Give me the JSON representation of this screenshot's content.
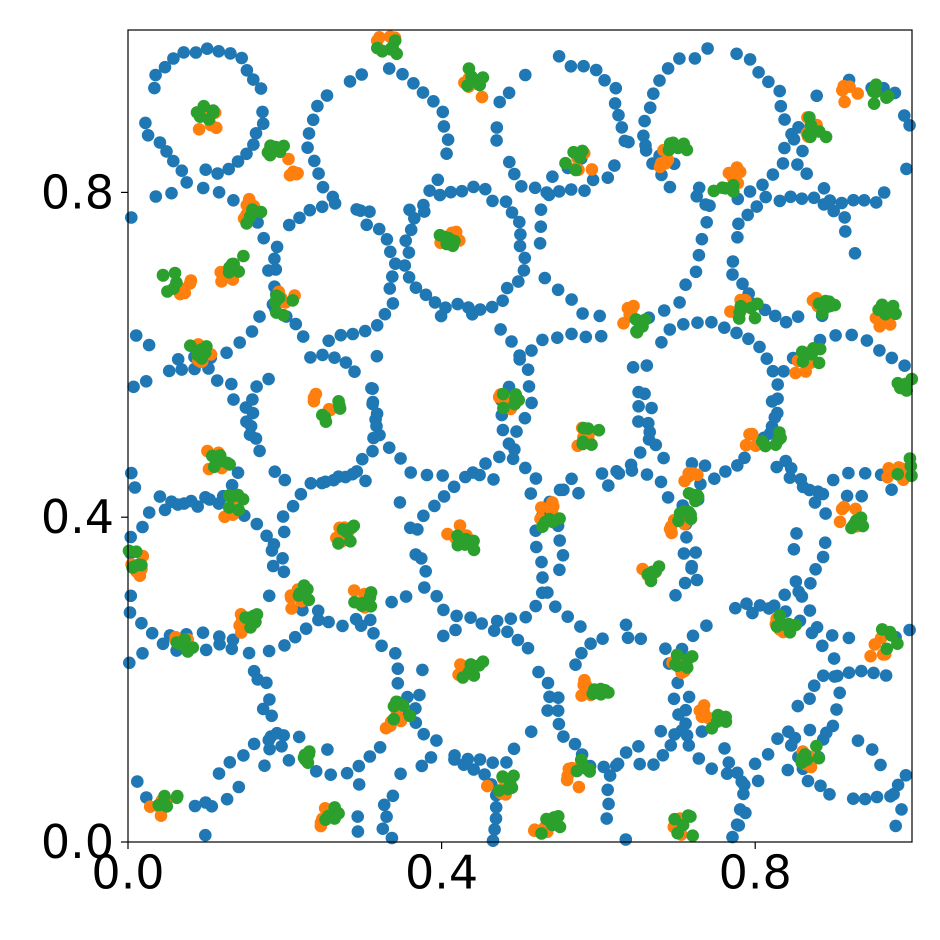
{
  "chart_data": {
    "type": "scatter",
    "title": "",
    "xlabel": "",
    "ylabel": "",
    "xlim": [
      0,
      1
    ],
    "ylim": [
      0,
      1
    ],
    "x_ticks": [
      0.0,
      0.4,
      0.8
    ],
    "x_tick_labels": [
      "0.0",
      "0.4",
      "0.8"
    ],
    "y_ticks": [
      0.0,
      0.4,
      0.8
    ],
    "y_tick_labels": [
      "0.0",
      "0.4",
      "0.8"
    ],
    "grid": false,
    "legend": "none",
    "series": [
      {
        "color": "#1f77b4",
        "ring_centers": [
          [
            0.1,
            0.9
          ],
          [
            0.32,
            0.86
          ],
          [
            0.55,
            0.88
          ],
          [
            0.75,
            0.88
          ],
          [
            0.93,
            0.86
          ],
          [
            0.08,
            0.7
          ],
          [
            0.26,
            0.7
          ],
          [
            0.43,
            0.73
          ],
          [
            0.63,
            0.75
          ],
          [
            0.85,
            0.72
          ],
          [
            0.07,
            0.5
          ],
          [
            0.24,
            0.52
          ],
          [
            0.41,
            0.55
          ],
          [
            0.57,
            0.53
          ],
          [
            0.74,
            0.55
          ],
          [
            0.92,
            0.52
          ],
          [
            0.09,
            0.33
          ],
          [
            0.28,
            0.36
          ],
          [
            0.46,
            0.36
          ],
          [
            0.62,
            0.36
          ],
          [
            0.8,
            0.38
          ],
          [
            0.95,
            0.35
          ],
          [
            0.08,
            0.15
          ],
          [
            0.26,
            0.18
          ],
          [
            0.45,
            0.18
          ],
          [
            0.63,
            0.17
          ],
          [
            0.8,
            0.18
          ],
          [
            0.93,
            0.13
          ],
          [
            0.2,
            0.03
          ],
          [
            0.4,
            0.03
          ],
          [
            0.7,
            0.05
          ],
          [
            0.88,
            0.03
          ]
        ],
        "ring_radius": 0.09,
        "points_per_ring": 32,
        "jitter": 0.012
      },
      {
        "color": "#ff7f0e",
        "clusters": [
          [
            0.1,
            0.89
          ],
          [
            0.21,
            0.83
          ],
          [
            0.33,
            0.98
          ],
          [
            0.44,
            0.93
          ],
          [
            0.15,
            0.78
          ],
          [
            0.13,
            0.7
          ],
          [
            0.2,
            0.67
          ],
          [
            0.07,
            0.68
          ],
          [
            0.1,
            0.6
          ],
          [
            0.41,
            0.74
          ],
          [
            0.58,
            0.84
          ],
          [
            0.69,
            0.84
          ],
          [
            0.77,
            0.82
          ],
          [
            0.87,
            0.88
          ],
          [
            0.92,
            0.92
          ],
          [
            0.64,
            0.65
          ],
          [
            0.78,
            0.66
          ],
          [
            0.88,
            0.66
          ],
          [
            0.96,
            0.64
          ],
          [
            0.86,
            0.59
          ],
          [
            0.25,
            0.54
          ],
          [
            0.48,
            0.54
          ],
          [
            0.58,
            0.5
          ],
          [
            0.72,
            0.45
          ],
          [
            0.8,
            0.49
          ],
          [
            0.11,
            0.47
          ],
          [
            0.13,
            0.41
          ],
          [
            0.27,
            0.38
          ],
          [
            0.42,
            0.38
          ],
          [
            0.53,
            0.41
          ],
          [
            0.66,
            0.33
          ],
          [
            0.7,
            0.39
          ],
          [
            0.92,
            0.4
          ],
          [
            0.01,
            0.34
          ],
          [
            0.07,
            0.25
          ],
          [
            0.15,
            0.27
          ],
          [
            0.21,
            0.3
          ],
          [
            0.29,
            0.3
          ],
          [
            0.34,
            0.15
          ],
          [
            0.43,
            0.21
          ],
          [
            0.47,
            0.07
          ],
          [
            0.53,
            0.02
          ],
          [
            0.57,
            0.08
          ],
          [
            0.59,
            0.19
          ],
          [
            0.7,
            0.21
          ],
          [
            0.74,
            0.16
          ],
          [
            0.86,
            0.1
          ],
          [
            0.96,
            0.24
          ],
          [
            0.7,
            0.02
          ],
          [
            0.83,
            0.27
          ],
          [
            0.04,
            0.04
          ],
          [
            0.25,
            0.03
          ],
          [
            0.98,
            0.45
          ]
        ],
        "points_per_cluster": 5,
        "jitter": 0.013
      },
      {
        "color": "#2ca02c",
        "clusters": [
          [
            0.1,
            0.9
          ],
          [
            0.19,
            0.85
          ],
          [
            0.33,
            0.98
          ],
          [
            0.44,
            0.94
          ],
          [
            0.16,
            0.77
          ],
          [
            0.14,
            0.71
          ],
          [
            0.2,
            0.66
          ],
          [
            0.05,
            0.69
          ],
          [
            0.09,
            0.6
          ],
          [
            0.41,
            0.74
          ],
          [
            0.57,
            0.84
          ],
          [
            0.7,
            0.85
          ],
          [
            0.76,
            0.81
          ],
          [
            0.88,
            0.88
          ],
          [
            0.96,
            0.92
          ],
          [
            0.65,
            0.64
          ],
          [
            0.79,
            0.65
          ],
          [
            0.89,
            0.66
          ],
          [
            0.97,
            0.65
          ],
          [
            0.87,
            0.6
          ],
          [
            0.26,
            0.53
          ],
          [
            0.49,
            0.54
          ],
          [
            0.59,
            0.5
          ],
          [
            0.72,
            0.43
          ],
          [
            0.82,
            0.5
          ],
          [
            0.12,
            0.47
          ],
          [
            0.14,
            0.42
          ],
          [
            0.28,
            0.38
          ],
          [
            0.43,
            0.37
          ],
          [
            0.54,
            0.4
          ],
          [
            0.67,
            0.33
          ],
          [
            0.71,
            0.4
          ],
          [
            0.93,
            0.39
          ],
          [
            0.01,
            0.35
          ],
          [
            0.07,
            0.24
          ],
          [
            0.16,
            0.27
          ],
          [
            0.22,
            0.31
          ],
          [
            0.3,
            0.3
          ],
          [
            0.35,
            0.16
          ],
          [
            0.44,
            0.21
          ],
          [
            0.48,
            0.07
          ],
          [
            0.54,
            0.02
          ],
          [
            0.58,
            0.09
          ],
          [
            0.6,
            0.19
          ],
          [
            0.71,
            0.22
          ],
          [
            0.75,
            0.15
          ],
          [
            0.87,
            0.11
          ],
          [
            0.97,
            0.25
          ],
          [
            0.71,
            0.02
          ],
          [
            0.84,
            0.27
          ],
          [
            0.05,
            0.05
          ],
          [
            0.26,
            0.04
          ],
          [
            0.99,
            0.46
          ],
          [
            0.99,
            0.56
          ],
          [
            0.22,
            0.1
          ]
        ],
        "points_per_cluster": 6,
        "jitter": 0.013
      }
    ]
  }
}
